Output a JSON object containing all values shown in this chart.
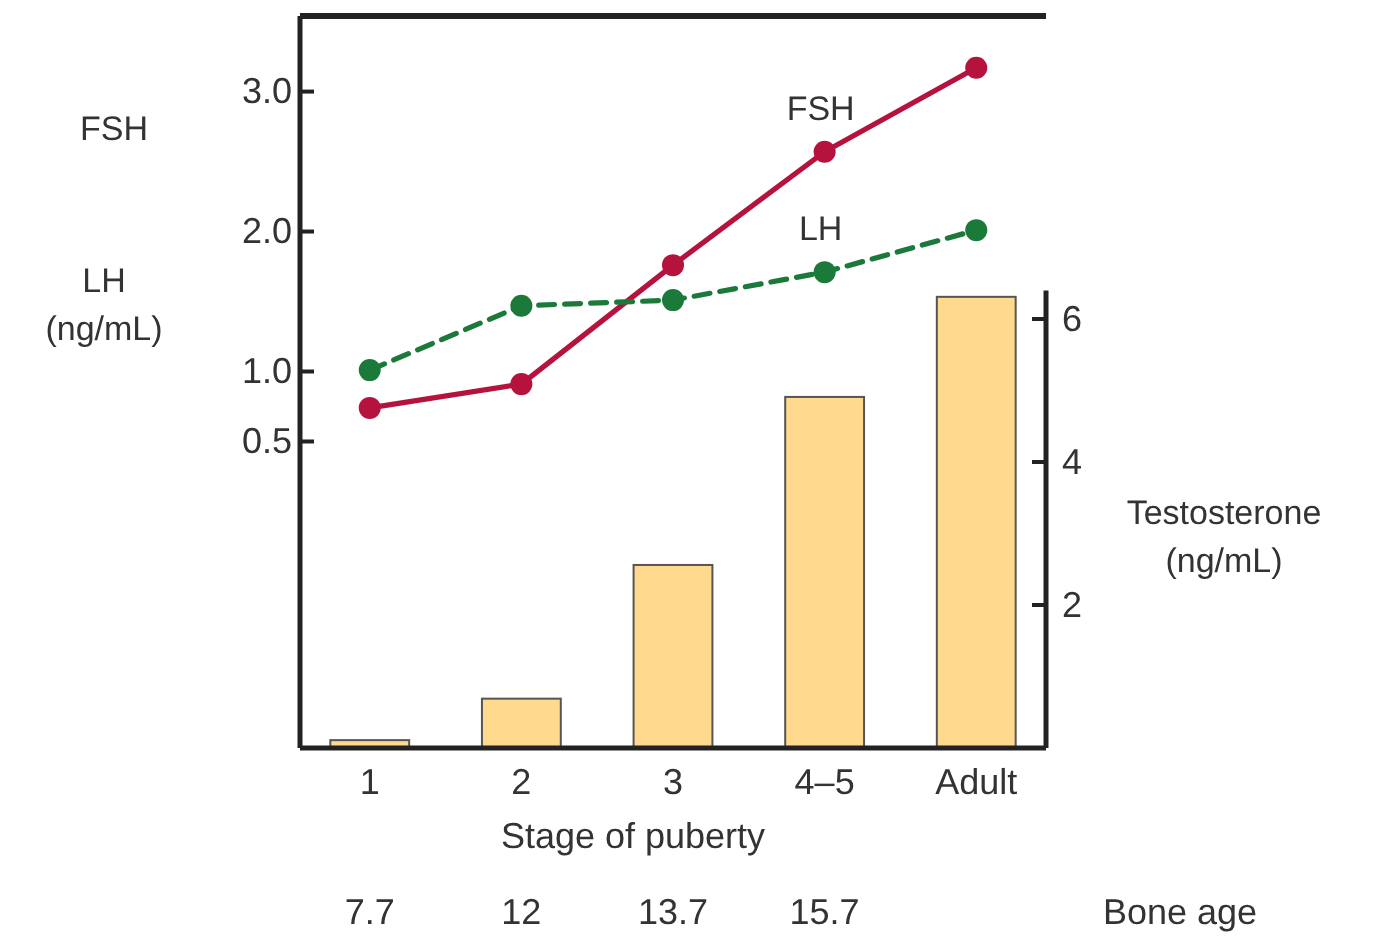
{
  "chart_data": {
    "type": "bar",
    "xlabel": "Stage of puberty",
    "ylabel": "FSH\nLH\n(ng/mL)",
    "y2label": "Testosterone\n(ng/mL)",
    "categories": [
      "1",
      "2",
      "3",
      "4–5",
      "Adult"
    ],
    "ylim": [
      -1.69,
      3.54
    ],
    "yticks": [
      0.5,
      {
        "value": 1,
        "label": "1.0"
      },
      {
        "value": 2,
        "label": "2.0"
      },
      {
        "value": 3,
        "label": "3.0"
      }
    ],
    "y2lim": [
      0,
      6.4
    ],
    "y2ticks": [
      2,
      4,
      6
    ],
    "marker": "circle",
    "legend": false,
    "series": [
      {
        "axis": "y2",
        "color": "#fed98e",
        "values": [
          0.11,
          0.69,
          2.56,
          4.91,
          6.31
        ]
      },
      {
        "type": "line",
        "name": "FSH",
        "color": "#b5123e",
        "line_style": "solid",
        "values": [
          0.74,
          0.91,
          1.76,
          2.57,
          3.17
        ]
      },
      {
        "type": "line",
        "name": "LH",
        "color": "#1b7a3a",
        "line_style": "dashed",
        "values": [
          1.01,
          1.47,
          1.51,
          1.71,
          2.01
        ]
      }
    ],
    "annotations": [
      "7.7",
      "12",
      "13.7",
      "15.7",
      "Bone age"
    ]
  }
}
